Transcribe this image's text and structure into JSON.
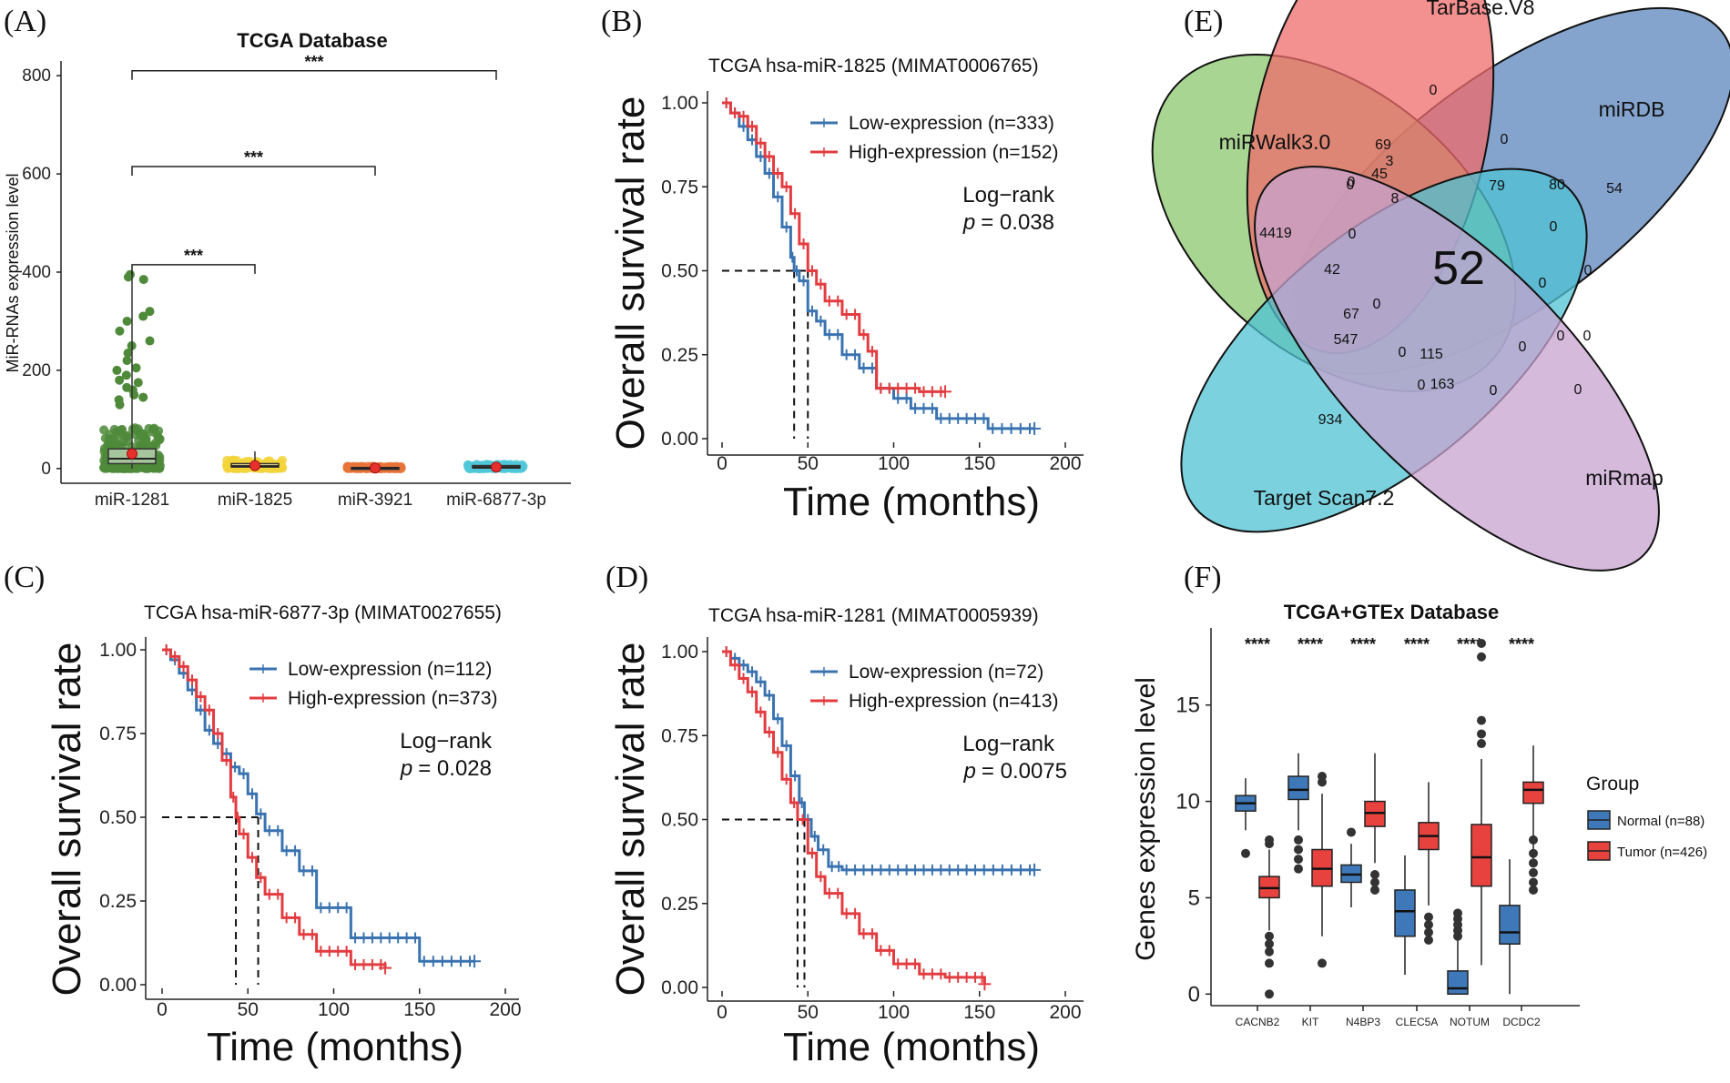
{
  "panel_labels": {
    "A": "(A)",
    "B": "(B)",
    "C": "(C)",
    "D": "(D)",
    "E": "(E)",
    "F": "(F)"
  },
  "colors": {
    "low": "#3a73b0",
    "high": "#e33c40",
    "normal": "#3f78b8",
    "tumor": "#e8423f",
    "venn_green": "#8cc76f",
    "venn_red": "#ef6b6b",
    "venn_blue": "#5b86bd",
    "venn_cyan": "#4fc1d3",
    "venn_purple": "#c7a3cf"
  },
  "chart_data": [
    {
      "id": "A",
      "type": "boxplot",
      "title": "TCGA Database",
      "ylabel": "MiR-RNAs expression level",
      "ylim": [
        -30,
        830
      ],
      "yticks": [
        0,
        200,
        400,
        600,
        800
      ],
      "categories": [
        "miR-1281",
        "miR-1825",
        "miR-3921",
        "miR-6877-3p"
      ],
      "point_colors": [
        "#4e8a3a",
        "#f2d43a",
        "#e8733a",
        "#4fc7d8"
      ],
      "boxes": [
        {
          "min": 0,
          "q1": 10,
          "median": 20,
          "q3": 40,
          "max": 400,
          "mean": 30,
          "spread": 40
        },
        {
          "min": 0,
          "q1": 3,
          "median": 5,
          "q3": 10,
          "max": 35,
          "mean": 6,
          "spread": 8
        },
        {
          "min": 0,
          "q1": 0,
          "median": 1,
          "q3": 2,
          "max": 5,
          "mean": 1,
          "spread": 2
        },
        {
          "min": 0,
          "q1": 1,
          "median": 3,
          "q3": 6,
          "max": 12,
          "mean": 3,
          "spread": 4
        }
      ],
      "outliers": [
        395,
        390,
        385,
        320,
        310,
        300,
        280,
        260,
        250,
        235,
        220,
        205,
        200,
        190,
        180,
        175,
        165,
        160,
        150,
        145,
        140,
        130
      ],
      "brackets": [
        {
          "from": "miR-1281",
          "to": "miR-1825",
          "y": 415,
          "label": "***"
        },
        {
          "from": "miR-1281",
          "to": "miR-3921",
          "y": 615,
          "label": "***"
        },
        {
          "from": "miR-1281",
          "to": "miR-6877-3p",
          "y": 810,
          "label": "***"
        }
      ]
    },
    {
      "id": "B",
      "type": "line",
      "title": "TCGA  hsa-miR-1825 (MIMAT0006765)",
      "xlabel": "Time (months)",
      "ylabel": "Overall survival rate",
      "xlim": [
        0,
        200
      ],
      "ylim": [
        0,
        1
      ],
      "xticks": [
        0,
        50,
        100,
        150,
        200
      ],
      "yticks": [
        "0.00",
        "0.25",
        "0.50",
        "0.75",
        "1.00"
      ],
      "series": [
        {
          "name": "Low-expression (n=333)",
          "color": "low",
          "points": [
            [
              0,
              1
            ],
            [
              5,
              0.97
            ],
            [
              10,
              0.93
            ],
            [
              15,
              0.89
            ],
            [
              20,
              0.84
            ],
            [
              25,
              0.79
            ],
            [
              30,
              0.72
            ],
            [
              35,
              0.63
            ],
            [
              40,
              0.54
            ],
            [
              42,
              0.5
            ],
            [
              45,
              0.47
            ],
            [
              50,
              0.38
            ],
            [
              55,
              0.35
            ],
            [
              60,
              0.31
            ],
            [
              70,
              0.25
            ],
            [
              80,
              0.21
            ],
            [
              90,
              0.15
            ],
            [
              100,
              0.12
            ],
            [
              110,
              0.09
            ],
            [
              125,
              0.06
            ],
            [
              140,
              0.06
            ],
            [
              155,
              0.03
            ],
            [
              182,
              0.03
            ]
          ]
        },
        {
          "name": "High-expression (n=152)",
          "color": "high",
          "points": [
            [
              0,
              1
            ],
            [
              5,
              0.97
            ],
            [
              10,
              0.96
            ],
            [
              15,
              0.93
            ],
            [
              20,
              0.88
            ],
            [
              25,
              0.84
            ],
            [
              30,
              0.79
            ],
            [
              35,
              0.75
            ],
            [
              40,
              0.67
            ],
            [
              45,
              0.58
            ],
            [
              50,
              0.5
            ],
            [
              55,
              0.46
            ],
            [
              60,
              0.41
            ],
            [
              70,
              0.37
            ],
            [
              80,
              0.31
            ],
            [
              85,
              0.26
            ],
            [
              90,
              0.15
            ],
            [
              100,
              0.15
            ],
            [
              115,
              0.14
            ],
            [
              130,
              0.14
            ]
          ]
        }
      ],
      "median_lines": [
        42,
        50
      ],
      "legend": [
        "Low-expression (n=333)",
        "High-expression (n=152)"
      ],
      "stat_label": "Log−rank",
      "p_prefix": "p",
      "p_value": "= 0.038"
    },
    {
      "id": "C",
      "type": "line",
      "title": "TCGA hsa-miR-6877-3p (MIMAT0027655)",
      "xlabel": "Time (months)",
      "ylabel": "Overall survival rate",
      "xlim": [
        0,
        200
      ],
      "ylim": [
        0,
        1
      ],
      "xticks": [
        0,
        50,
        100,
        150,
        200
      ],
      "yticks": [
        "0.00",
        "0.25",
        "0.50",
        "0.75",
        "1.00"
      ],
      "series": [
        {
          "name": "Low-expression (n=112)",
          "color": "low",
          "points": [
            [
              0,
              1
            ],
            [
              5,
              0.97
            ],
            [
              10,
              0.93
            ],
            [
              15,
              0.88
            ],
            [
              20,
              0.82
            ],
            [
              25,
              0.76
            ],
            [
              30,
              0.72
            ],
            [
              35,
              0.69
            ],
            [
              40,
              0.65
            ],
            [
              45,
              0.63
            ],
            [
              50,
              0.57
            ],
            [
              55,
              0.51
            ],
            [
              60,
              0.46
            ],
            [
              70,
              0.4
            ],
            [
              80,
              0.34
            ],
            [
              90,
              0.23
            ],
            [
              110,
              0.14
            ],
            [
              130,
              0.14
            ],
            [
              150,
              0.07
            ],
            [
              182,
              0.07
            ]
          ]
        },
        {
          "name": "High-expression (n=373)",
          "color": "high",
          "points": [
            [
              0,
              1
            ],
            [
              5,
              0.98
            ],
            [
              10,
              0.95
            ],
            [
              15,
              0.91
            ],
            [
              20,
              0.86
            ],
            [
              25,
              0.82
            ],
            [
              30,
              0.75
            ],
            [
              35,
              0.67
            ],
            [
              40,
              0.56
            ],
            [
              43,
              0.5
            ],
            [
              45,
              0.45
            ],
            [
              50,
              0.38
            ],
            [
              55,
              0.32
            ],
            [
              60,
              0.27
            ],
            [
              70,
              0.2
            ],
            [
              80,
              0.15
            ],
            [
              90,
              0.1
            ],
            [
              100,
              0.1
            ],
            [
              110,
              0.06
            ],
            [
              130,
              0.05
            ]
          ]
        }
      ],
      "median_lines": [
        43,
        56
      ],
      "legend": [
        "Low-expression (n=112)",
        "High-expression (n=373)"
      ],
      "stat_label": "Log−rank",
      "p_prefix": "p",
      "p_value": "= 0.028"
    },
    {
      "id": "D",
      "type": "line",
      "title": "TCGA  hsa-miR-1281 (MIMAT0005939)",
      "xlabel": "Time (months)",
      "ylabel": "Overall survival rate",
      "xlim": [
        0,
        200
      ],
      "ylim": [
        0,
        1
      ],
      "xticks": [
        0,
        50,
        100,
        150,
        200
      ],
      "yticks": [
        "0.00",
        "0.25",
        "0.50",
        "0.75",
        "1.00"
      ],
      "series": [
        {
          "name": "Low-expression (n=72)",
          "color": "low",
          "points": [
            [
              0,
              1
            ],
            [
              5,
              0.98
            ],
            [
              10,
              0.96
            ],
            [
              15,
              0.94
            ],
            [
              20,
              0.91
            ],
            [
              25,
              0.87
            ],
            [
              30,
              0.8
            ],
            [
              35,
              0.72
            ],
            [
              40,
              0.63
            ],
            [
              45,
              0.55
            ],
            [
              48,
              0.5
            ],
            [
              52,
              0.45
            ],
            [
              56,
              0.41
            ],
            [
              62,
              0.36
            ],
            [
              70,
              0.35
            ],
            [
              100,
              0.35
            ],
            [
              150,
              0.35
            ],
            [
              182,
              0.35
            ]
          ]
        },
        {
          "name": "High-expression (n=413)",
          "color": "high",
          "points": [
            [
              0,
              1
            ],
            [
              5,
              0.96
            ],
            [
              10,
              0.92
            ],
            [
              15,
              0.88
            ],
            [
              20,
              0.82
            ],
            [
              25,
              0.76
            ],
            [
              30,
              0.7
            ],
            [
              35,
              0.62
            ],
            [
              40,
              0.55
            ],
            [
              44,
              0.5
            ],
            [
              50,
              0.4
            ],
            [
              55,
              0.33
            ],
            [
              60,
              0.28
            ],
            [
              70,
              0.22
            ],
            [
              80,
              0.16
            ],
            [
              90,
              0.11
            ],
            [
              100,
              0.07
            ],
            [
              115,
              0.04
            ],
            [
              130,
              0.03
            ],
            [
              150,
              0.03
            ],
            [
              153,
              0.01
            ]
          ]
        }
      ],
      "median_lines": [
        44,
        48
      ],
      "legend": [
        "Low-expression (n=72)",
        "High-expression (n=413)"
      ],
      "stat_label": "Log−rank",
      "p_prefix": "p",
      "p_value": "= 0.0075"
    },
    {
      "id": "F",
      "type": "boxplot",
      "title": "TCGA+GTEx Database",
      "ylabel": "Genes expression level",
      "ylim": [
        -0.6,
        19
      ],
      "yticks": [
        0,
        5,
        10,
        15
      ],
      "categories": [
        "CACNB2",
        "KIT",
        "N4BP3",
        "CLEC5A",
        "NOTUM",
        "DCDC2"
      ],
      "significance": [
        "****",
        "****",
        "****",
        "****",
        "****",
        "****"
      ],
      "legend_title": "Group",
      "groups": [
        {
          "name": "Normal (n=88)",
          "color": "normal",
          "boxes": [
            {
              "min": 8.5,
              "q1": 9.5,
              "median": 9.9,
              "q3": 10.3,
              "max": 11.2,
              "outliers": [
                7.3
              ]
            },
            {
              "min": 8.5,
              "q1": 10.1,
              "median": 10.6,
              "q3": 11.3,
              "max": 12.5,
              "outliers": [
                8.0,
                7.5,
                7.0,
                6.5
              ]
            },
            {
              "min": 4.5,
              "q1": 5.8,
              "median": 6.2,
              "q3": 6.7,
              "max": 7.8,
              "outliers": [
                8.4
              ]
            },
            {
              "min": 1.0,
              "q1": 3.0,
              "median": 4.3,
              "q3": 5.4,
              "max": 7.2,
              "outliers": []
            },
            {
              "min": 0.0,
              "q1": 0.0,
              "median": 0.3,
              "q3": 1.2,
              "max": 2.8,
              "outliers": [
                3.0,
                3.3,
                3.6,
                3.9,
                4.2
              ]
            },
            {
              "min": 0.0,
              "q1": 2.6,
              "median": 3.2,
              "q3": 4.6,
              "max": 7.0,
              "outliers": []
            }
          ]
        },
        {
          "name": "Tumor (n=426)",
          "color": "tumor",
          "boxes": [
            {
              "min": 3.3,
              "q1": 5.0,
              "median": 5.5,
              "q3": 6.1,
              "max": 7.5,
              "outliers": [
                3.0,
                2.6,
                2.2,
                1.6,
                0.0,
                7.8,
                8.0
              ]
            },
            {
              "min": 3.0,
              "q1": 5.6,
              "median": 6.5,
              "q3": 7.5,
              "max": 10.4,
              "outliers": [
                1.6,
                11.0,
                11.3
              ]
            },
            {
              "min": 6.8,
              "q1": 8.7,
              "median": 9.4,
              "q3": 10.0,
              "max": 12.5,
              "outliers": [
                6.2,
                5.8,
                5.4
              ]
            },
            {
              "min": 4.6,
              "q1": 7.5,
              "median": 8.2,
              "q3": 8.9,
              "max": 11.0,
              "outliers": [
                4.0,
                3.6,
                3.2,
                2.8
              ]
            },
            {
              "min": 1.5,
              "q1": 5.6,
              "median": 7.1,
              "q3": 8.8,
              "max": 12.2,
              "outliers": [
                13.0,
                13.5,
                14.2,
                17.5,
                18.2
              ]
            },
            {
              "min": 7.0,
              "q1": 9.9,
              "median": 10.6,
              "q3": 11.0,
              "max": 12.9,
              "outliers": [
                8.0,
                7.3,
                6.8,
                6.3,
                5.8,
                5.4
              ]
            }
          ]
        }
      ]
    }
  ],
  "venn": {
    "labels": [
      "TarBase.V8",
      "miRDB",
      "miRmap",
      "Target Scan7.2",
      "miRWalk3.0"
    ],
    "center_value": "52",
    "region_values": [
      "0",
      "69",
      "0",
      "3",
      "0",
      "45",
      "80",
      "54",
      "79",
      "0",
      "4419",
      "8",
      "0",
      "42",
      "0",
      "0",
      "0",
      "0",
      "0",
      "67",
      "547",
      "0",
      "115",
      "0",
      "0",
      "0",
      "163",
      "0",
      "934",
      "0"
    ]
  }
}
